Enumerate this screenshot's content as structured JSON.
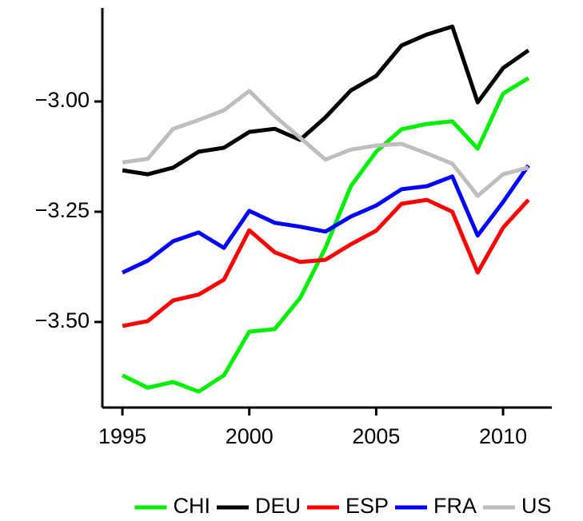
{
  "chart_data": {
    "type": "line",
    "x": [
      1995,
      1996,
      1997,
      1998,
      1999,
      2000,
      2001,
      2002,
      2003,
      2004,
      2005,
      2006,
      2007,
      2008,
      2009,
      2010,
      2011
    ],
    "series": [
      {
        "name": "CHI",
        "color": "#00ee00",
        "values": [
          -3.621,
          -3.649,
          -3.636,
          -3.658,
          -3.621,
          -3.522,
          -3.516,
          -3.446,
          -3.332,
          -3.192,
          -3.114,
          -3.063,
          -3.051,
          -3.045,
          -3.107,
          -2.982,
          -2.947
        ]
      },
      {
        "name": "DEU",
        "color": "#000000",
        "values": [
          -3.156,
          -3.165,
          -3.15,
          -3.114,
          -3.105,
          -3.069,
          -3.062,
          -3.087,
          -3.036,
          -2.975,
          -2.942,
          -2.873,
          -2.848,
          -2.83,
          -3.002,
          -2.924,
          -2.884
        ]
      },
      {
        "name": "ESP",
        "color": "#ff0000",
        "values": [
          -3.509,
          -3.498,
          -3.451,
          -3.438,
          -3.404,
          -3.292,
          -3.342,
          -3.364,
          -3.359,
          -3.324,
          -3.293,
          -3.232,
          -3.223,
          -3.25,
          -3.388,
          -3.286,
          -3.223
        ]
      },
      {
        "name": "FRA",
        "color": "#0000ff",
        "values": [
          -3.388,
          -3.361,
          -3.317,
          -3.297,
          -3.332,
          -3.248,
          -3.275,
          -3.284,
          -3.295,
          -3.261,
          -3.236,
          -3.199,
          -3.192,
          -3.17,
          -3.304,
          -3.228,
          -3.145
        ]
      },
      {
        "name": "US",
        "color": "#bebebe",
        "values": [
          -3.138,
          -3.13,
          -3.062,
          -3.042,
          -3.02,
          -2.976,
          -3.033,
          -3.082,
          -3.132,
          -3.109,
          -3.1,
          -3.096,
          -3.118,
          -3.141,
          -3.214,
          -3.165,
          -3.15
        ]
      }
    ],
    "xlim": [
      1994.21,
      2011.92
    ],
    "xticks": [
      1995,
      2000,
      2005,
      2010
    ],
    "ylim": [
      -3.694,
      -2.788
    ],
    "yticks": [
      {
        "value": -3.5,
        "label": "−3.50"
      },
      {
        "value": -3.25,
        "label": "−3.25"
      },
      {
        "value": -3,
        "label": "−3.00"
      }
    ],
    "grid": false,
    "legend": "bottom"
  }
}
